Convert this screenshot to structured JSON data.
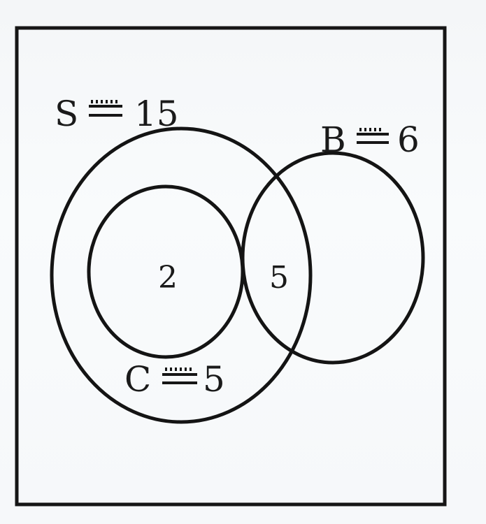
{
  "diagram": {
    "sets": [
      {
        "id": "S",
        "letter": "S",
        "equals_sign": "=",
        "count": "15"
      },
      {
        "id": "B",
        "letter": "B",
        "equals_sign": "=",
        "count": "6"
      },
      {
        "id": "C",
        "letter": "C",
        "equals_sign": "=",
        "count": "5"
      }
    ],
    "regions": {
      "inner_c": "2",
      "s_and_b": "5"
    },
    "colors": {
      "ink": "#141414",
      "paper": "#f7f9fb"
    }
  }
}
